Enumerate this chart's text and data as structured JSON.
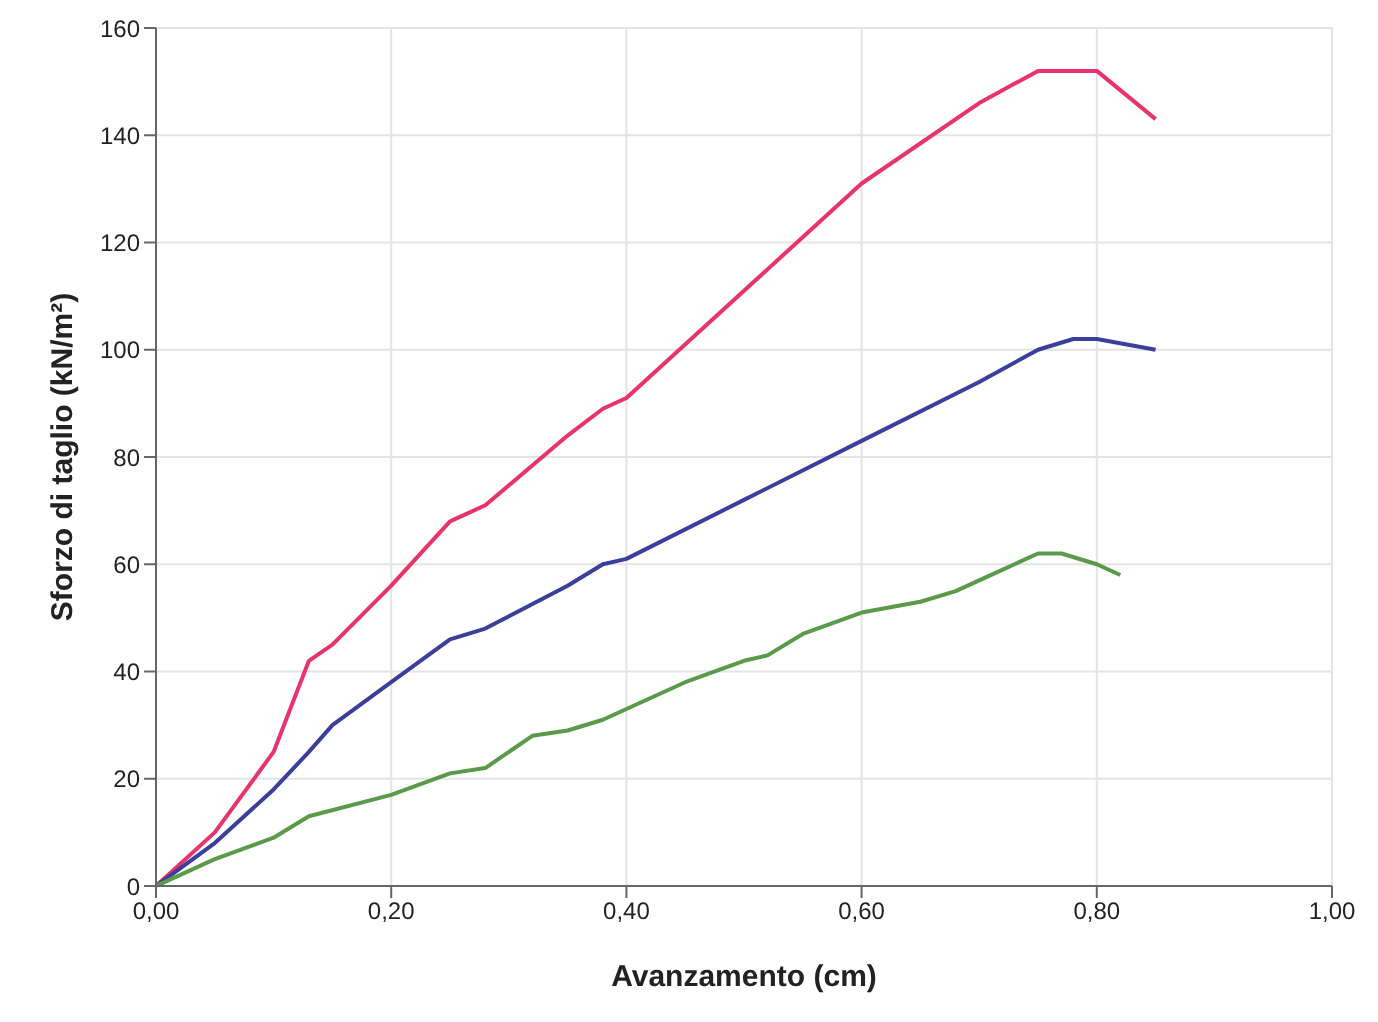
{
  "chart_data": {
    "type": "line",
    "xlabel": "Avanzamento (cm)",
    "ylabel": "Sforzo di taglio (kN/m²)",
    "xlim": [
      0,
      1
    ],
    "ylim": [
      0,
      160
    ],
    "xticks": [
      {
        "value": 0,
        "label": "0,00"
      },
      {
        "value": 0.2,
        "label": "0,20"
      },
      {
        "value": 0.4,
        "label": "0,40"
      },
      {
        "value": 0.6,
        "label": "0,60"
      },
      {
        "value": 0.8,
        "label": "0,80"
      },
      {
        "value": 1,
        "label": "1,00"
      }
    ],
    "yticks": [
      0,
      20,
      40,
      60,
      80,
      100,
      120,
      140,
      160
    ],
    "grid": true,
    "legend": false,
    "marker": "none",
    "line_style": "solid",
    "series": [
      {
        "color": "#e8336b",
        "x": [
          0,
          0.05,
          0.1,
          0.13,
          0.15,
          0.2,
          0.25,
          0.28,
          0.35,
          0.38,
          0.4,
          0.5,
          0.6,
          0.7,
          0.75,
          0.8,
          0.85
        ],
        "values": [
          0,
          10,
          25,
          42,
          45,
          56,
          68,
          71,
          84,
          89,
          91,
          111,
          131,
          146,
          152,
          152,
          143
        ]
      },
      {
        "color": "#3a3f9a",
        "x": [
          0,
          0.05,
          0.1,
          0.13,
          0.15,
          0.2,
          0.25,
          0.28,
          0.35,
          0.38,
          0.4,
          0.5,
          0.6,
          0.7,
          0.75,
          0.78,
          0.8,
          0.85
        ],
        "values": [
          0,
          8,
          18,
          25,
          30,
          38,
          46,
          48,
          56,
          60,
          61,
          72,
          83,
          94,
          100,
          102,
          102,
          100
        ]
      },
      {
        "color": "#5a9a4a",
        "x": [
          0,
          0.05,
          0.1,
          0.13,
          0.2,
          0.25,
          0.28,
          0.32,
          0.35,
          0.38,
          0.4,
          0.45,
          0.5,
          0.52,
          0.55,
          0.6,
          0.65,
          0.68,
          0.72,
          0.75,
          0.77,
          0.8,
          0.82
        ],
        "values": [
          0,
          5,
          9,
          13,
          17,
          21,
          22,
          28,
          29,
          31,
          33,
          38,
          42,
          43,
          47,
          51,
          53,
          55,
          59,
          62,
          62,
          60,
          58
        ]
      }
    ]
  }
}
